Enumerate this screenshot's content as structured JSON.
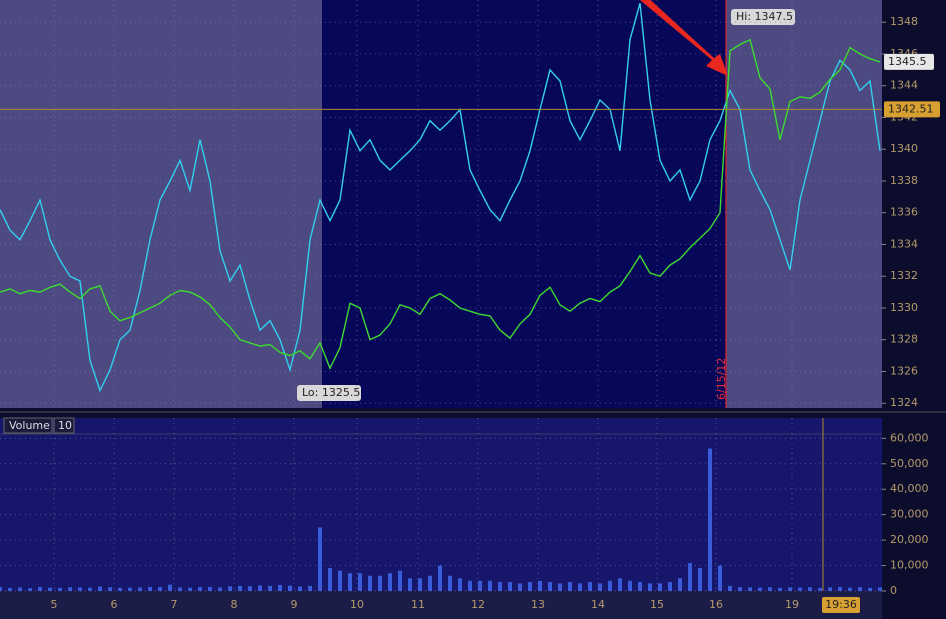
{
  "chart_data": [
    {
      "type": "line",
      "x": [
        0,
        1,
        2,
        3,
        4,
        5,
        6,
        7,
        8,
        9,
        10,
        11,
        12,
        13,
        14,
        15,
        16,
        17,
        18,
        19,
        20,
        21,
        22,
        23,
        24,
        25,
        26,
        27,
        28,
        29,
        30,
        31,
        32,
        33,
        34,
        35,
        36,
        37,
        38,
        39,
        40,
        41,
        42,
        43,
        44,
        45,
        46,
        47,
        48,
        49,
        50,
        51,
        52,
        53,
        54,
        55,
        56,
        57,
        58,
        59,
        60,
        61,
        62,
        63,
        64,
        65,
        66,
        67,
        68,
        69,
        70,
        71,
        72,
        73,
        74,
        75,
        76,
        77,
        78,
        79,
        80,
        81,
        82,
        83,
        84,
        85,
        86,
        87,
        88
      ],
      "xlim": [
        0,
        88.2
      ],
      "series": [
        {
          "color": "#33cfee",
          "values": [
            1336.2,
            1334.9,
            1334.3,
            1335.5,
            1336.8,
            1334.3,
            1333.0,
            1332.0,
            1331.7,
            1326.7,
            1324.8,
            1326.1,
            1328.0,
            1328.6,
            1331.1,
            1334.3,
            1336.8,
            1338.0,
            1339.3,
            1337.4,
            1340.6,
            1338.0,
            1333.6,
            1331.7,
            1332.7,
            1330.5,
            1328.6,
            1329.2,
            1328.0,
            1326.1,
            1328.6,
            1334.3,
            1336.8,
            1335.5,
            1336.8,
            1341.2,
            1339.9,
            1340.6,
            1339.3,
            1338.7,
            1339.3,
            1339.9,
            1340.6,
            1341.8,
            1341.2,
            1341.8,
            1342.5,
            1338.7,
            1337.4,
            1336.2,
            1335.5,
            1336.8,
            1338.0,
            1339.9,
            1342.5,
            1345.0,
            1344.3,
            1341.8,
            1340.6,
            1341.8,
            1343.1,
            1342.5,
            1339.9,
            1346.9,
            1349.2,
            1343.1,
            1339.3,
            1338.0,
            1338.7,
            1336.8,
            1338.0,
            1340.6,
            1341.8,
            1343.7,
            1342.5,
            1338.7,
            1337.4,
            1336.2,
            1334.3,
            1332.4,
            1336.8,
            1339.3,
            1341.8,
            1344.3,
            1345.6,
            1345.0,
            1343.7,
            1344.3,
            1339.9
          ]
        },
        {
          "color": "#3ddc2e",
          "values": [
            1331.0,
            1331.2,
            1330.9,
            1331.1,
            1331.0,
            1331.3,
            1331.5,
            1331.0,
            1330.6,
            1331.2,
            1331.4,
            1329.8,
            1329.2,
            1329.4,
            1329.7,
            1330.0,
            1330.3,
            1330.8,
            1331.1,
            1331.0,
            1330.7,
            1330.2,
            1329.4,
            1328.8,
            1328.0,
            1327.8,
            1327.6,
            1327.7,
            1327.2,
            1327.0,
            1327.3,
            1326.8,
            1327.8,
            1326.2,
            1327.5,
            1330.3,
            1330.0,
            1328.0,
            1328.3,
            1329.0,
            1330.2,
            1330.0,
            1329.6,
            1330.6,
            1330.9,
            1330.5,
            1330.0,
            1329.8,
            1329.6,
            1329.5,
            1328.6,
            1328.1,
            1329.0,
            1329.6,
            1330.8,
            1331.3,
            1330.2,
            1329.8,
            1330.3,
            1330.6,
            1330.4,
            1331.0,
            1331.4,
            1332.3,
            1333.3,
            1332.2,
            1332.0,
            1332.7,
            1333.1,
            1333.8,
            1334.4,
            1335.0,
            1336.0,
            1346.2,
            1346.6,
            1346.9,
            1344.5,
            1343.8,
            1340.6,
            1343.0,
            1343.3,
            1343.2,
            1343.6,
            1344.4,
            1345.0,
            1346.4,
            1346.0,
            1345.7,
            1345.5
          ]
        }
      ],
      "ylim": [
        1323.7,
        1349.4
      ],
      "yticks": [
        1324,
        1326,
        1328,
        1330,
        1332,
        1334,
        1336,
        1338,
        1340,
        1342,
        1344,
        1346,
        1348
      ],
      "grid": true,
      "last_value": 1345.5,
      "reference_value": 1342.51,
      "annotations": {
        "hi": "Hi: 1347.5",
        "lo": "Lo: 1325.5",
        "date": "6/15/12"
      }
    },
    {
      "type": "bar",
      "title": "Volume",
      "period": 10,
      "color": "#3a5cd8",
      "x": [
        0,
        1,
        2,
        3,
        4,
        5,
        6,
        7,
        8,
        9,
        10,
        11,
        12,
        13,
        14,
        15,
        16,
        17,
        18,
        19,
        20,
        21,
        22,
        23,
        24,
        25,
        26,
        27,
        28,
        29,
        30,
        31,
        32,
        33,
        34,
        35,
        36,
        37,
        38,
        39,
        40,
        41,
        42,
        43,
        44,
        45,
        46,
        47,
        48,
        49,
        50,
        51,
        52,
        53,
        54,
        55,
        56,
        57,
        58,
        59,
        60,
        61,
        62,
        63,
        64,
        65,
        66,
        67,
        68,
        69,
        70,
        71,
        72,
        73,
        74,
        75,
        76,
        77,
        78,
        79,
        80,
        81,
        82,
        83,
        84,
        85,
        86,
        87,
        88
      ],
      "values": [
        1500,
        1200,
        1400,
        1100,
        1600,
        1300,
        1200,
        1500,
        1400,
        1300,
        1800,
        1500,
        1200,
        1300,
        1400,
        1600,
        1500,
        2500,
        1400,
        1300,
        1500,
        1600,
        1400,
        1800,
        2000,
        1900,
        2200,
        2000,
        2400,
        2100,
        1800,
        2000,
        25000,
        9000,
        8000,
        7000,
        7000,
        6000,
        6000,
        7000,
        8000,
        5000,
        5000,
        6000,
        10000,
        6000,
        5000,
        4000,
        4000,
        4000,
        3500,
        3500,
        3000,
        3500,
        4000,
        3500,
        3000,
        3500,
        3000,
        3500,
        3000,
        4000,
        5000,
        4000,
        3500,
        3000,
        3000,
        3500,
        5000,
        11000,
        9000,
        56000,
        10000,
        2000,
        1500,
        1400,
        1300,
        1500,
        1200,
        1400,
        1300,
        1500,
        1200,
        1400,
        1600,
        1300,
        1500,
        1200,
        1400
      ],
      "xlim": [
        0,
        88.2
      ],
      "xticks": [
        {
          "value": 5.4,
          "label": "5"
        },
        {
          "value": 11.4,
          "label": "6"
        },
        {
          "value": 17.4,
          "label": "7"
        },
        {
          "value": 23.4,
          "label": "8"
        },
        {
          "value": 29.4,
          "label": "9"
        },
        {
          "value": 35.7,
          "label": "10"
        },
        {
          "value": 41.8,
          "label": "11"
        },
        {
          "value": 47.8,
          "label": "12"
        },
        {
          "value": 53.8,
          "label": "13"
        },
        {
          "value": 59.8,
          "label": "14"
        },
        {
          "value": 65.7,
          "label": "15"
        },
        {
          "value": 71.6,
          "label": "16"
        },
        {
          "value": 79.2,
          "label": "19"
        }
      ],
      "ylim": [
        0,
        68000
      ],
      "yticks": [
        0,
        {
          "value": 10000,
          "label": "10,000"
        },
        {
          "value": 20000,
          "label": "20,000"
        },
        {
          "value": 30000,
          "label": "30,000"
        },
        {
          "value": 40000,
          "label": "40,000"
        },
        {
          "value": 50000,
          "label": "50,000"
        },
        {
          "value": 60000,
          "label": "60,000"
        }
      ],
      "grid": true,
      "time_label": "19:36"
    }
  ]
}
